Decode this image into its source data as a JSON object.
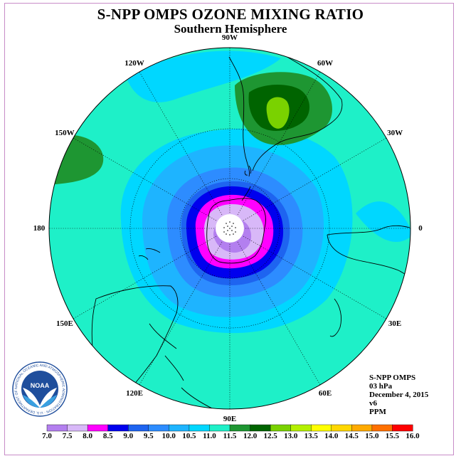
{
  "title": "S-NPP OMPS OZONE MIXING RATIO",
  "subtitle": "Southern Hemisphere",
  "longitude_labels": [
    {
      "text": "90W",
      "lon": -90
    },
    {
      "text": "60W",
      "lon": -60
    },
    {
      "text": "30W",
      "lon": -30
    },
    {
      "text": "0",
      "lon": 0
    },
    {
      "text": "30E",
      "lon": 30
    },
    {
      "text": "60E",
      "lon": 60
    },
    {
      "text": "90E",
      "lon": 90
    },
    {
      "text": "120E",
      "lon": 120
    },
    {
      "text": "150E",
      "lon": 150
    },
    {
      "text": "180",
      "lon": 180
    },
    {
      "text": "150W",
      "lon": -150
    },
    {
      "text": "120W",
      "lon": -120
    }
  ],
  "info": {
    "instrument": "S-NPP OMPS",
    "level": "03 hPa",
    "date": "December 4, 2015",
    "version": "v6",
    "units": "PPM"
  },
  "colorbar": {
    "labels": [
      "7.0",
      "7.5",
      "8.0",
      "8.5",
      "9.0",
      "9.5",
      "10.0",
      "10.5",
      "11.0",
      "11.5",
      "12.0",
      "12.5",
      "13.0",
      "13.5",
      "14.0",
      "14.5",
      "15.0",
      "15.5",
      "16.0"
    ],
    "colors": [
      "#b37fef",
      "#d8b8f8",
      "#ff00ff",
      "#0000ee",
      "#1e64f0",
      "#2d8cff",
      "#1eb4ff",
      "#00d7ff",
      "#1ef0c8",
      "#1e9632",
      "#006400",
      "#7ad200",
      "#b4f000",
      "#ffff00",
      "#ffd700",
      "#ffaa00",
      "#ff7000",
      "#ff0000",
      "#8b5a3c"
    ]
  },
  "colors": {
    "background_field": "#1ef0c8",
    "frame": "#c88cc8"
  },
  "logo": {
    "emblem_text": "NOAA",
    "ring_text": "NATIONAL OCEANIC AND ATMOSPHERIC ADMINISTRATION · U.S. DEPARTMENT OF COMMERCE"
  }
}
